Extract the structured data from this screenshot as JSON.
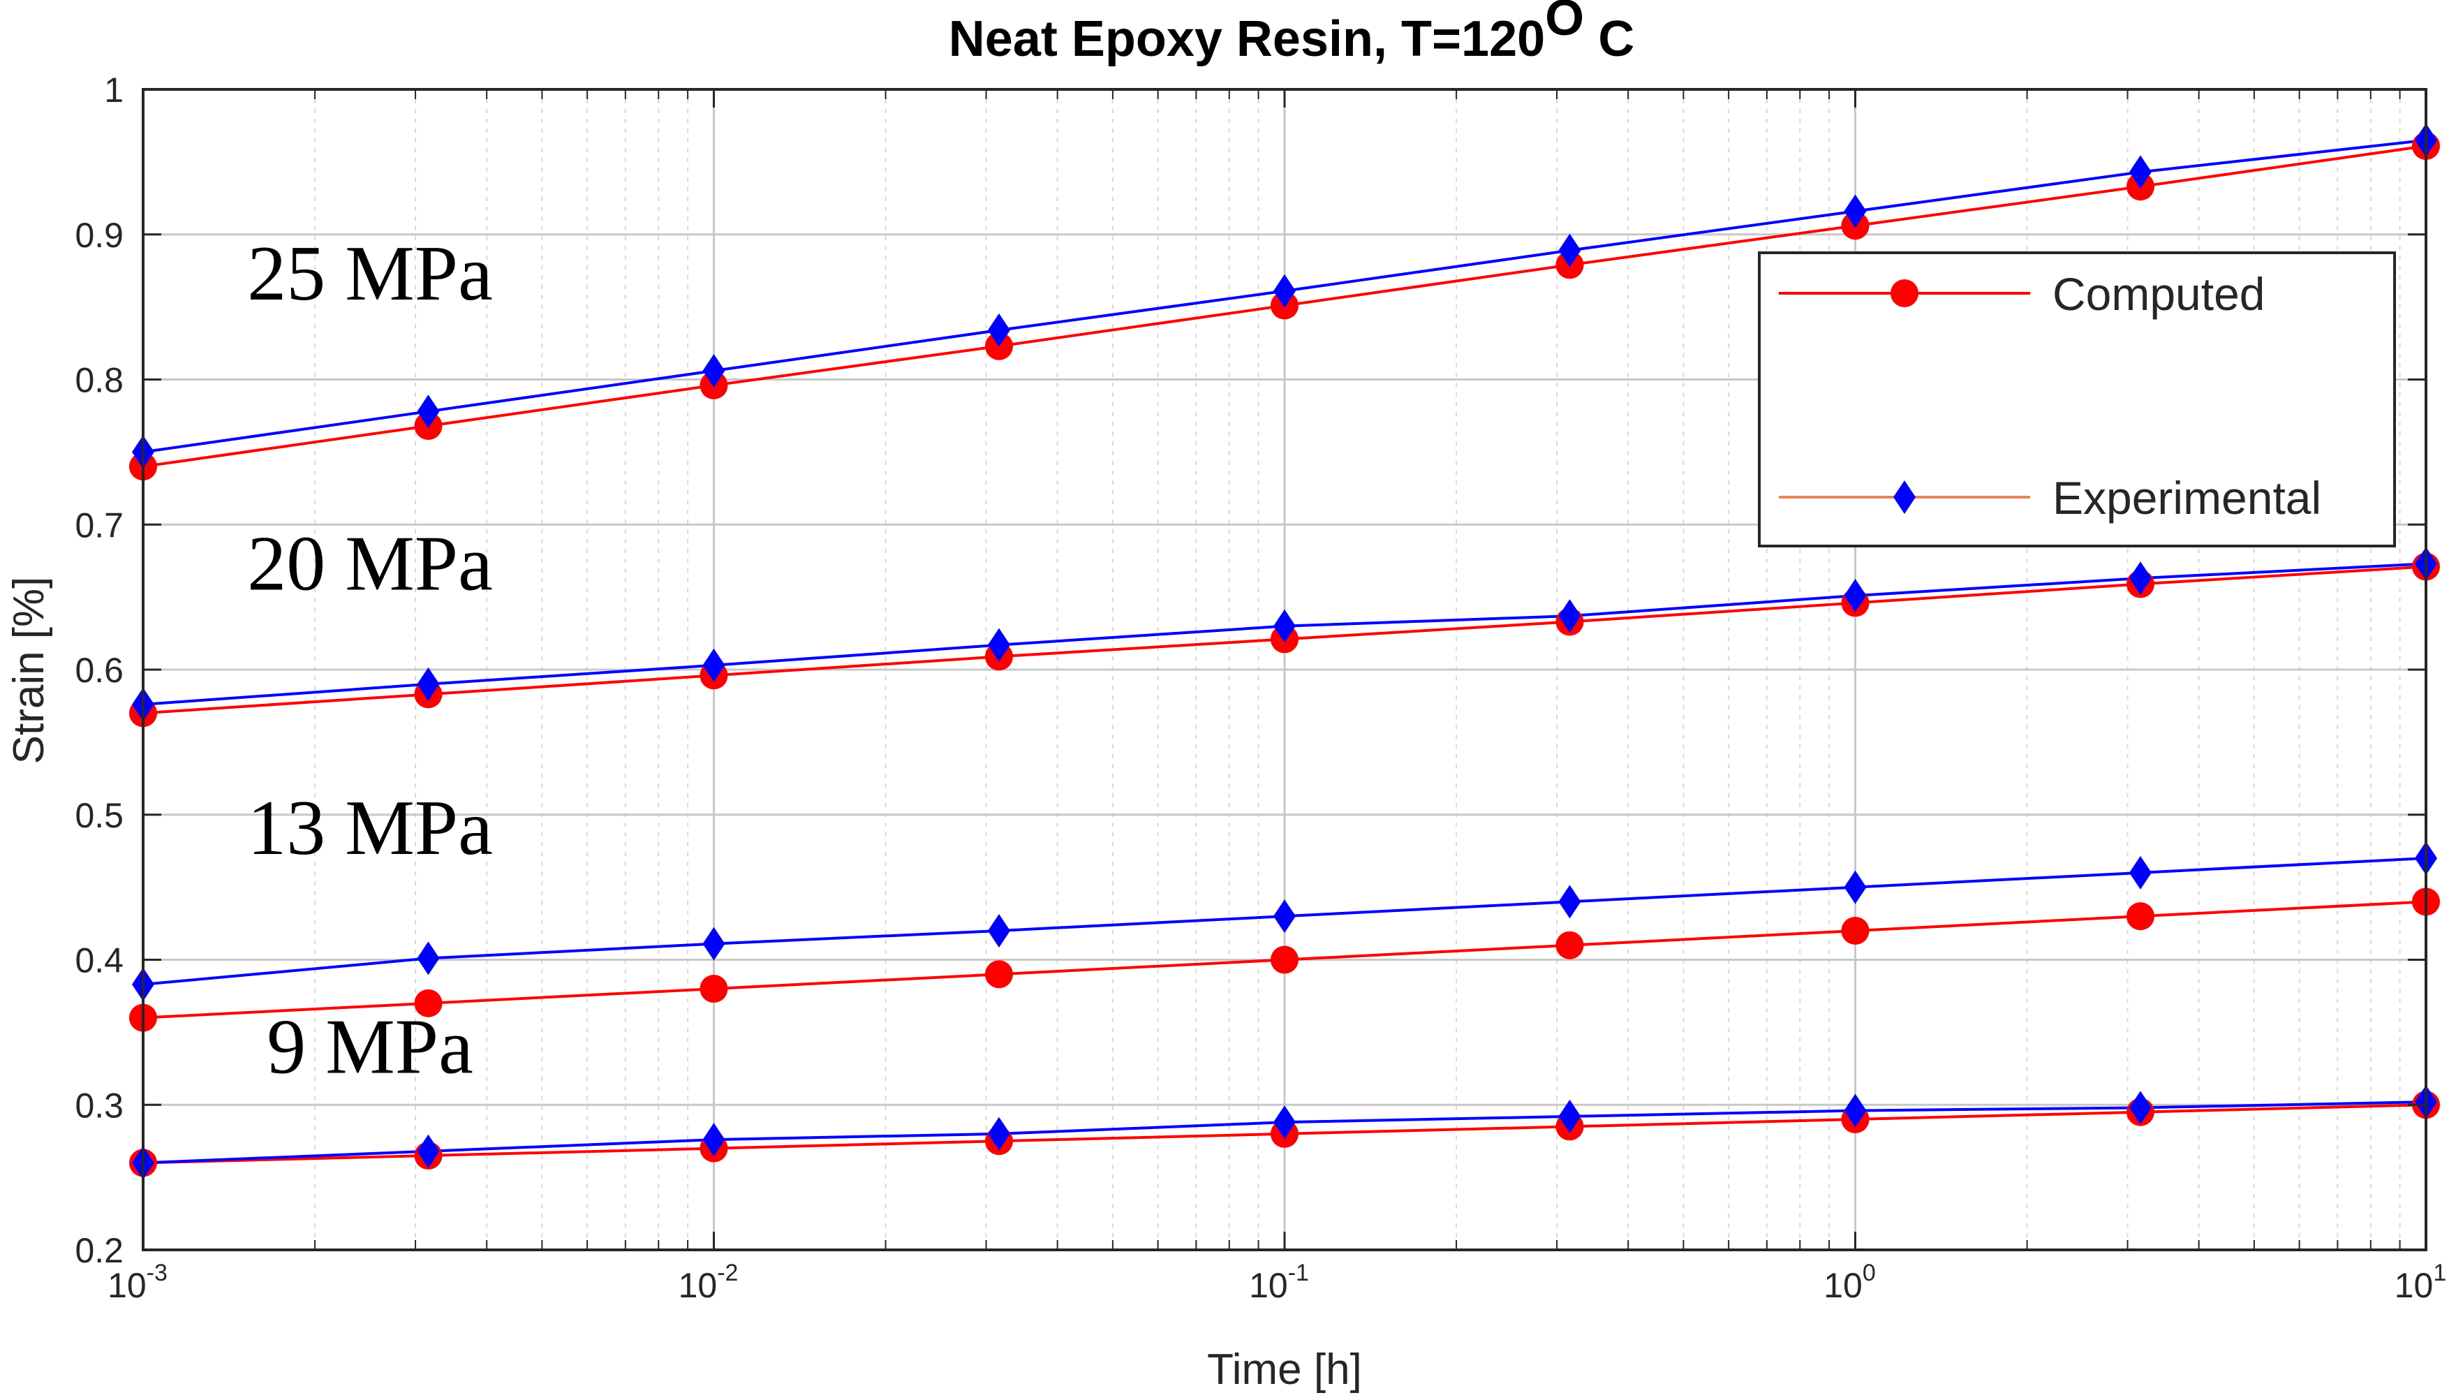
{
  "chart_data": {
    "type": "line",
    "title": "Neat Epoxy Resin, T=120",
    "title_superscript": "O",
    "title_suffix": " C",
    "xlabel": "Time [h]",
    "ylabel": "Strain [%]",
    "xscale": "log",
    "xlim": [
      0.001,
      10
    ],
    "ylim": [
      0.2,
      1.0
    ],
    "grid": true,
    "x": [
      0.001,
      0.00316,
      0.01,
      0.0316,
      0.1,
      0.316,
      1,
      3.16,
      10
    ],
    "x_ticks": [
      {
        "value": 0.001,
        "base": "10",
        "exp": "-3"
      },
      {
        "value": 0.01,
        "base": "10",
        "exp": "-2"
      },
      {
        "value": 0.1,
        "base": "10",
        "exp": "-1"
      },
      {
        "value": 1,
        "base": "10",
        "exp": "0"
      },
      {
        "value": 10,
        "base": "10",
        "exp": "1"
      }
    ],
    "y_ticks": [
      "0.2",
      "0.3",
      "0.4",
      "0.5",
      "0.6",
      "0.7",
      "0.8",
      "0.9",
      "1"
    ],
    "legend": {
      "position": "top-right",
      "entries": [
        {
          "label": "Computed",
          "color": "#ff0000",
          "marker": "circle"
        },
        {
          "label": "Experimental",
          "color": "#0000ff",
          "line_color": "#e8845a",
          "marker": "diamond"
        }
      ]
    },
    "groups": [
      {
        "label": "25 MPa",
        "label_y": 0.855,
        "computed": [
          0.74,
          0.768,
          0.796,
          0.823,
          0.851,
          0.879,
          0.906,
          0.933,
          0.961
        ],
        "experimental": [
          0.75,
          0.778,
          0.806,
          0.834,
          0.861,
          0.889,
          0.916,
          0.943,
          0.965
        ]
      },
      {
        "label": "20 MPa",
        "label_y": 0.655,
        "computed": [
          0.57,
          0.583,
          0.596,
          0.609,
          0.621,
          0.633,
          0.646,
          0.659,
          0.671
        ],
        "experimental": [
          0.576,
          0.59,
          0.603,
          0.617,
          0.63,
          0.637,
          0.651,
          0.663,
          0.673
        ]
      },
      {
        "label": "13 MPa",
        "label_y": 0.473,
        "computed": [
          0.36,
          0.37,
          0.38,
          0.39,
          0.4,
          0.41,
          0.42,
          0.43,
          0.44
        ],
        "experimental": [
          0.383,
          0.401,
          0.411,
          0.42,
          0.43,
          0.44,
          0.45,
          0.46,
          0.47
        ]
      },
      {
        "label": "9 MPa",
        "label_y": 0.322,
        "computed": [
          0.26,
          0.265,
          0.27,
          0.275,
          0.28,
          0.285,
          0.29,
          0.295,
          0.3
        ],
        "experimental": [
          0.26,
          0.268,
          0.276,
          0.28,
          0.288,
          0.292,
          0.296,
          0.298,
          0.302
        ]
      }
    ]
  }
}
